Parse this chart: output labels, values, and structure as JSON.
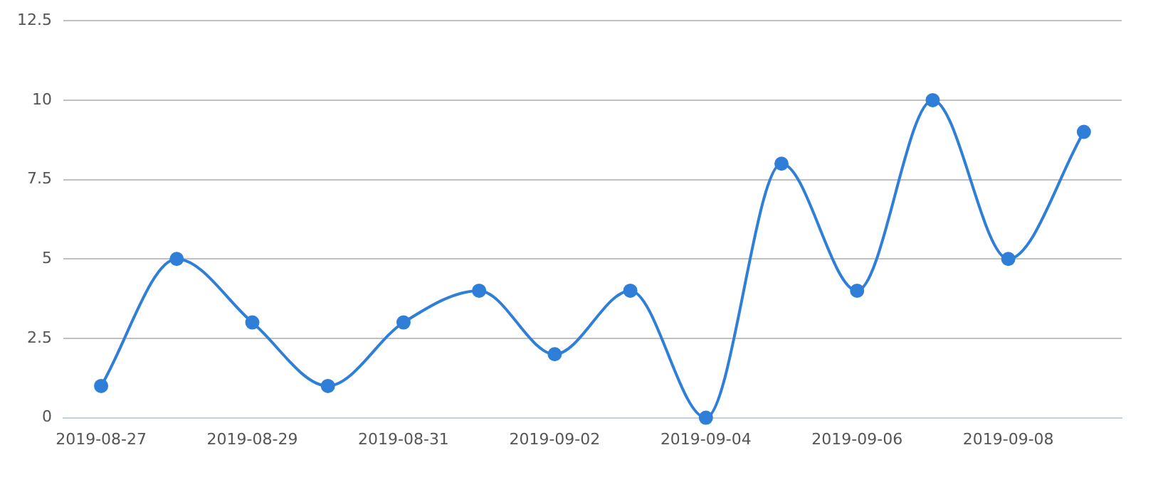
{
  "chart_data": {
    "type": "line",
    "categories": [
      "2019-08-27",
      null,
      "2019-08-29",
      null,
      "2019-08-31",
      null,
      "2019-09-02",
      null,
      "2019-09-04",
      null,
      "2019-09-06",
      null,
      "2019-09-08",
      null
    ],
    "series": [
      {
        "color": "#2f7ed8",
        "values": [
          1,
          5,
          3,
          1,
          3,
          4,
          2,
          4,
          0,
          8,
          4,
          10,
          5,
          9
        ]
      }
    ],
    "ylim": [
      0,
      12.5
    ],
    "yticks": [
      0,
      2.5,
      5,
      7.5,
      10,
      12.5
    ],
    "grid": "y",
    "legend": false,
    "marker": "circle",
    "line_style": "solid"
  }
}
